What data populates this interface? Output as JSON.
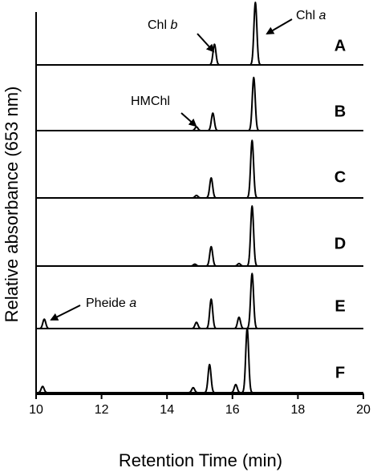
{
  "chart_data": {
    "type": "line",
    "x_label": "Retention Time (min)",
    "y_label": "Relative absorbance (653 nm)",
    "xlim": [
      10,
      20
    ],
    "xticks": [
      10,
      12,
      14,
      16,
      18,
      20
    ],
    "color": "#000000",
    "series": [
      {
        "name": "A",
        "x": [
          15.45,
          16.7
        ],
        "values": [
          0.33,
          1.0
        ]
      },
      {
        "name": "B",
        "x": [
          14.9,
          15.4,
          16.65
        ],
        "values": [
          0.06,
          0.28,
          0.85
        ]
      },
      {
        "name": "C",
        "x": [
          14.9,
          15.35,
          16.6
        ],
        "values": [
          0.04,
          0.32,
          0.92
        ]
      },
      {
        "name": "D",
        "x": [
          14.85,
          15.35,
          16.2,
          16.6
        ],
        "values": [
          0.03,
          0.31,
          0.04,
          0.96
        ]
      },
      {
        "name": "E",
        "x": [
          10.25,
          14.9,
          15.35,
          16.2,
          16.6
        ],
        "values": [
          0.15,
          0.1,
          0.47,
          0.18,
          0.88
        ]
      },
      {
        "name": "F",
        "x": [
          10.2,
          14.8,
          15.3,
          16.1,
          16.45
        ],
        "values": [
          0.1,
          0.08,
          0.45,
          0.13,
          1.03
        ]
      }
    ],
    "annotations": [
      {
        "text": "Chl",
        "italic": "b"
      },
      {
        "text": "Chl",
        "italic": "a"
      },
      {
        "text": "HMChl"
      },
      {
        "text": "Pheide",
        "italic": "a"
      }
    ]
  }
}
